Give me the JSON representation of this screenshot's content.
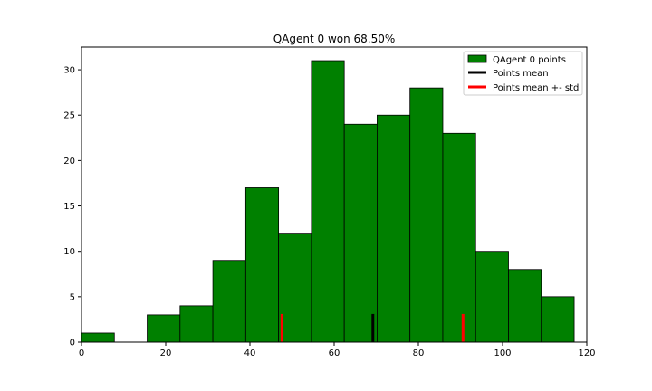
{
  "chart_data": {
    "type": "bar",
    "title": "QAgent 0 won 68.50%",
    "xlabel": "",
    "ylabel": "",
    "xlim": [
      0,
      120
    ],
    "ylim": [
      0,
      32.5
    ],
    "grid": false,
    "legend_placement": "top-right",
    "x_ticks": [
      0,
      20,
      40,
      60,
      80,
      100,
      120
    ],
    "y_ticks": [
      0,
      5,
      10,
      15,
      20,
      25,
      30
    ],
    "bin_edges": [
      0,
      7.8,
      15.6,
      23.4,
      31.2,
      39.0,
      46.8,
      54.6,
      62.4,
      70.2,
      78.0,
      85.8,
      93.6,
      101.4,
      109.2,
      117.0
    ],
    "bin_counts": [
      1,
      0,
      3,
      4,
      9,
      17,
      12,
      31,
      24,
      25,
      28,
      23,
      10,
      8,
      5
    ],
    "series": [
      {
        "name": "QAgent 0 points",
        "kind": "histogram",
        "color": "#008000"
      },
      {
        "name": "Points mean",
        "kind": "vline",
        "x": [
          69.2
        ],
        "height": 3.1,
        "color": "#000000"
      },
      {
        "name": "Points mean +- std",
        "kind": "vline",
        "x": [
          47.6,
          90.6
        ],
        "height": 3.1,
        "color": "#ff0000"
      }
    ]
  }
}
